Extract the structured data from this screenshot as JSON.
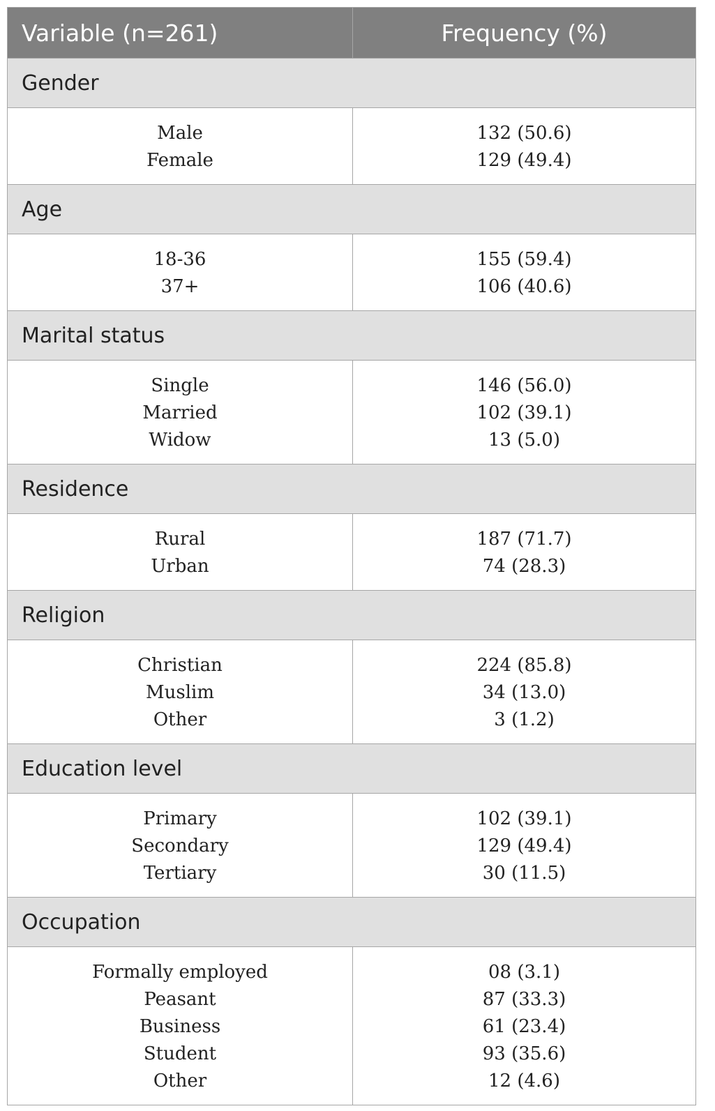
{
  "header": {
    "variable": "Variable (n=261)",
    "frequency": "Frequency (%)"
  },
  "groups": [
    {
      "label": "Gender",
      "rows": [
        {
          "name": "Male",
          "value": "132 (50.6)"
        },
        {
          "name": "Female",
          "value": "129 (49.4)"
        }
      ]
    },
    {
      "label": "Age",
      "rows": [
        {
          "name": "18-36",
          "value": "155 (59.4)"
        },
        {
          "name": "37+",
          "value": "106 (40.6)"
        }
      ]
    },
    {
      "label": "Marital status",
      "rows": [
        {
          "name": "Single",
          "value": "146 (56.0)"
        },
        {
          "name": "Married",
          "value": "102 (39.1)"
        },
        {
          "name": "Widow",
          "value": "13 (5.0)"
        }
      ]
    },
    {
      "label": "Residence",
      "rows": [
        {
          "name": "Rural",
          "value": "187 (71.7)"
        },
        {
          "name": "Urban",
          "value": "74 (28.3)"
        }
      ]
    },
    {
      "label": "Religion",
      "rows": [
        {
          "name": "Christian",
          "value": "224 (85.8)"
        },
        {
          "name": "Muslim",
          "value": "34 (13.0)"
        },
        {
          "name": "Other",
          "value": "3 (1.2)"
        }
      ]
    },
    {
      "label": "Education level",
      "rows": [
        {
          "name": "Primary",
          "value": "102 (39.1)"
        },
        {
          "name": "Secondary",
          "value": "129 (49.4)"
        },
        {
          "name": "Tertiary",
          "value": "30 (11.5)"
        }
      ]
    },
    {
      "label": "Occupation",
      "rows": [
        {
          "name": "Formally employed",
          "value": "08 (3.1)"
        },
        {
          "name": "Peasant",
          "value": "87 (33.3)"
        },
        {
          "name": "Business",
          "value": "61 (23.4)"
        },
        {
          "name": "Student",
          "value": "93 (35.6)"
        },
        {
          "name": "Other",
          "value": "12 (4.6)"
        }
      ]
    }
  ]
}
